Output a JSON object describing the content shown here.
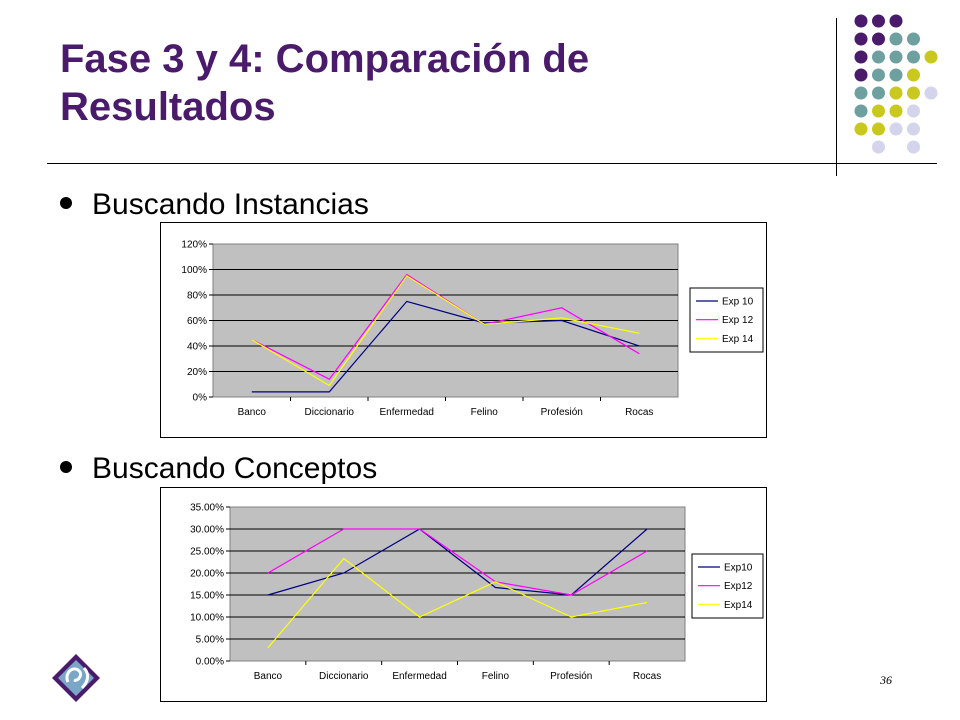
{
  "slide": {
    "title": "Fase 3 y 4: Comparación de Resultados",
    "bullets": [
      "Buscando Instancias",
      "Buscando Conceptos"
    ],
    "page_number": "36",
    "colors": {
      "title": "#4a1a6b",
      "dot_purple": "#4a1a6b",
      "dot_teal": "#6fa0a0",
      "dot_yellow": "#c8c81e",
      "dot_lavender": "#d4d4ec"
    }
  },
  "chart_data": [
    {
      "type": "line",
      "categories": [
        "Banco",
        "Diccionario",
        "Enfermedad",
        "Felino",
        "Profesión",
        "Rocas"
      ],
      "ylim": [
        0,
        120
      ],
      "yticks": [
        "0%",
        "20%",
        "40%",
        "60%",
        "80%",
        "100%",
        "120%"
      ],
      "grid": true,
      "plot_bg": "#c0c0c0",
      "legend_position": "right",
      "series": [
        {
          "name": "Exp 10",
          "color": "#000080",
          "values": [
            4,
            4,
            75,
            58,
            60,
            40
          ]
        },
        {
          "name": "Exp 12",
          "color": "#ff00ff",
          "values": [
            45,
            14,
            96,
            57,
            70,
            34
          ]
        },
        {
          "name": "Exp 14",
          "color": "#ffff00",
          "values": [
            45,
            9,
            95,
            57,
            62,
            50
          ]
        }
      ]
    },
    {
      "type": "line",
      "categories": [
        "Banco",
        "Diccionario",
        "Enfermedad",
        "Felino",
        "Profesión",
        "Rocas"
      ],
      "ylim": [
        0,
        35
      ],
      "yticks": [
        "0.00%",
        "5.00%",
        "10.00%",
        "15.00%",
        "20.00%",
        "25.00%",
        "30.00%",
        "35.00%"
      ],
      "grid": true,
      "plot_bg": "#c0c0c0",
      "legend_position": "right",
      "series": [
        {
          "name": "Exp10",
          "color": "#000080",
          "values": [
            15,
            20,
            30,
            16.7,
            15,
            30
          ]
        },
        {
          "name": "Exp12",
          "color": "#ff00ff",
          "values": [
            20,
            30,
            30,
            18,
            15,
            25
          ]
        },
        {
          "name": "Exp14",
          "color": "#ffff00",
          "values": [
            3,
            23.3,
            10,
            18,
            10,
            13.3
          ]
        }
      ]
    }
  ]
}
